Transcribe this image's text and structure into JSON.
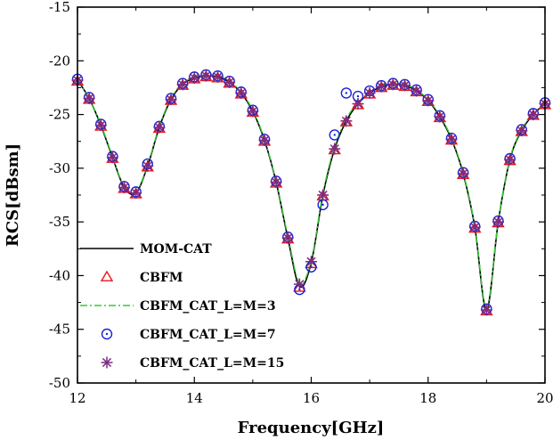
{
  "chart_data": {
    "type": "line",
    "title": "",
    "xlabel": "Frequency[GHz]",
    "ylabel": "RCS[dBsm]",
    "xlim": [
      12,
      20
    ],
    "ylim": [
      -50,
      -15
    ],
    "xticks": [
      12,
      14,
      16,
      18,
      20
    ],
    "yticks": [
      -15,
      -20,
      -25,
      -30,
      -35,
      -40,
      -45,
      -50
    ],
    "x": [
      12.0,
      12.2,
      12.4,
      12.6,
      12.8,
      13.0,
      13.2,
      13.4,
      13.6,
      13.8,
      14.0,
      14.2,
      14.4,
      14.6,
      14.8,
      15.0,
      15.2,
      15.4,
      15.6,
      15.8,
      16.0,
      16.2,
      16.4,
      16.6,
      16.8,
      17.0,
      17.2,
      17.4,
      17.6,
      17.8,
      18.0,
      18.2,
      18.4,
      18.6,
      18.8,
      19.0,
      19.2,
      19.4,
      19.6,
      19.8,
      20.0
    ],
    "series": [
      {
        "name": "MOM-CAT",
        "style": "solid-line",
        "color": "#000000",
        "values": [
          -21.8,
          -23.5,
          -26.0,
          -29.0,
          -31.8,
          -32.3,
          -29.8,
          -26.2,
          -23.6,
          -22.2,
          -21.6,
          -21.4,
          -21.5,
          -22.0,
          -23.0,
          -24.7,
          -27.4,
          -31.3,
          -36.5,
          -41.0,
          -38.8,
          -32.5,
          -28.2,
          -25.6,
          -24.0,
          -23.0,
          -22.4,
          -22.2,
          -22.3,
          -22.8,
          -23.7,
          -25.2,
          -27.3,
          -30.5,
          -35.5,
          -43.2,
          -35.0,
          -29.2,
          -26.5,
          -25.0,
          -24.0
        ]
      },
      {
        "name": "CBFM",
        "style": "triangle-marker",
        "color": "#e8141a",
        "values": [
          -21.9,
          -23.6,
          -26.1,
          -29.1,
          -31.9,
          -32.4,
          -29.9,
          -26.3,
          -23.7,
          -22.3,
          -21.7,
          -21.5,
          -21.6,
          -22.1,
          -23.1,
          -24.8,
          -27.5,
          -31.4,
          -36.6,
          -41.1,
          -38.9,
          -32.6,
          -28.3,
          -25.7,
          -24.1,
          -23.1,
          -22.5,
          -22.3,
          -22.4,
          -22.9,
          -23.8,
          -25.3,
          -27.4,
          -30.6,
          -35.6,
          -43.3,
          -35.1,
          -29.3,
          -26.6,
          -25.1,
          -24.1
        ]
      },
      {
        "name": "CBFM_CAT_L=M=3",
        "style": "dash-dot-line",
        "color": "#33cc33",
        "values": [
          -21.8,
          -23.5,
          -25.9,
          -28.9,
          -31.7,
          -32.2,
          -29.7,
          -26.1,
          -23.5,
          -22.1,
          -21.5,
          -21.3,
          -21.3,
          -21.9,
          -22.9,
          -24.6,
          -27.3,
          -31.2,
          -36.3,
          -40.7,
          -38.6,
          -32.3,
          -28.0,
          -25.4,
          -23.9,
          -22.9,
          -22.3,
          -22.1,
          -22.2,
          -22.7,
          -23.6,
          -25.1,
          -27.2,
          -30.4,
          -35.4,
          -43.0,
          -34.9,
          -29.1,
          -26.4,
          -24.9,
          -23.9
        ]
      },
      {
        "name": "CBFM_CAT_L=M=7",
        "style": "circle-dot-marker",
        "color": "#1a22d6",
        "values": [
          -21.7,
          -23.4,
          -25.9,
          -28.9,
          -31.7,
          -32.2,
          -29.6,
          -26.1,
          -23.5,
          -22.1,
          -21.5,
          -21.3,
          -21.4,
          -21.9,
          -22.9,
          -24.6,
          -27.3,
          -31.2,
          -36.4,
          -41.3,
          -39.2,
          -33.4,
          -26.9,
          -23.0,
          -23.3,
          -22.8,
          -22.3,
          -22.1,
          -22.2,
          -22.7,
          -23.6,
          -25.1,
          -27.2,
          -30.4,
          -35.4,
          -43.1,
          -34.9,
          -29.1,
          -26.4,
          -24.9,
          -23.9
        ]
      },
      {
        "name": "CBFM_CAT_L=M=15",
        "style": "asterisk-marker",
        "color": "#7b2d83",
        "values": [
          -21.8,
          -23.5,
          -26.0,
          -29.0,
          -31.8,
          -32.3,
          -29.8,
          -26.2,
          -23.6,
          -22.2,
          -21.6,
          -21.4,
          -21.5,
          -22.0,
          -23.0,
          -24.7,
          -27.4,
          -31.3,
          -36.5,
          -40.8,
          -38.7,
          -32.5,
          -28.2,
          -25.6,
          -24.0,
          -23.0,
          -22.4,
          -22.2,
          -22.3,
          -22.8,
          -23.7,
          -25.2,
          -27.3,
          -30.5,
          -35.5,
          -43.2,
          -35.0,
          -29.2,
          -26.5,
          -25.0,
          -24.0
        ]
      }
    ],
    "legend_position": "bottom-left"
  }
}
